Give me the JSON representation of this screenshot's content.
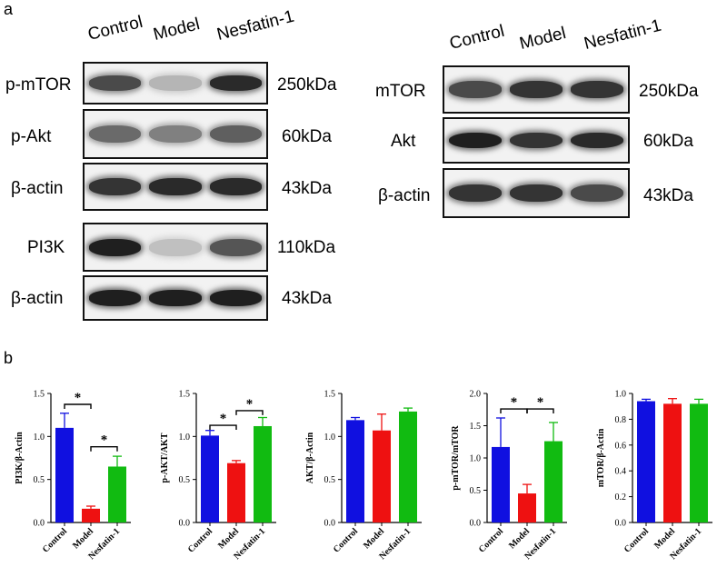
{
  "panel_a_label": "a",
  "panel_b_label": "b",
  "lanes": [
    "Control",
    "Model",
    "Nesfatin-1"
  ],
  "left_blot": {
    "rows": [
      {
        "label": "p-mTOR",
        "kda": "250kDa",
        "intensity": [
          0.75,
          0.25,
          0.9
        ]
      },
      {
        "label": "p-Akt",
        "kda": "60kDa",
        "intensity": [
          0.6,
          0.5,
          0.65
        ]
      },
      {
        "label": "β-actin",
        "kda": "43kDa",
        "intensity": [
          0.85,
          0.9,
          0.9
        ]
      },
      {
        "label": "PI3K",
        "kda": "110kDa",
        "intensity": [
          0.95,
          0.2,
          0.7
        ]
      },
      {
        "label": "β-actin",
        "kda": "43kDa",
        "intensity": [
          0.95,
          0.95,
          0.95
        ]
      }
    ]
  },
  "right_blot": {
    "rows": [
      {
        "label": "mTOR",
        "kda": "250kDa",
        "intensity": [
          0.75,
          0.85,
          0.85
        ]
      },
      {
        "label": "Akt",
        "kda": "60kDa",
        "intensity": [
          0.95,
          0.85,
          0.9
        ]
      },
      {
        "label": "β-actin",
        "kda": "43kDa",
        "intensity": [
          0.85,
          0.85,
          0.75
        ]
      }
    ]
  },
  "colors": {
    "control": "#1010e0",
    "model": "#ee1111",
    "nesfatin": "#11bb11"
  },
  "chart_data": [
    {
      "type": "bar",
      "ylabel": "PI3K/β-Actin",
      "categories": [
        "Control",
        "Model",
        "Nesfatin-1"
      ],
      "values": [
        1.1,
        0.16,
        0.65
      ],
      "errors": [
        0.17,
        0.03,
        0.12
      ],
      "ylim": [
        0,
        1.5
      ],
      "yticks": [
        "0.0",
        "0.5",
        "1.0",
        "1.5"
      ],
      "ytick_values": [
        0,
        0.5,
        1.0,
        1.5
      ],
      "significance": [
        {
          "from": 0,
          "to": 1,
          "label": "*"
        },
        {
          "from": 1,
          "to": 2,
          "label": "*"
        }
      ]
    },
    {
      "type": "bar",
      "ylabel": "p-AKT/AKT",
      "categories": [
        "Control",
        "Model",
        "Nesfatin-1"
      ],
      "values": [
        1.01,
        0.69,
        1.12
      ],
      "errors": [
        0.06,
        0.03,
        0.1
      ],
      "ylim": [
        0,
        1.5
      ],
      "yticks": [
        "0.0",
        "0.5",
        "1.0",
        "1.5"
      ],
      "ytick_values": [
        0,
        0.5,
        1.0,
        1.5
      ],
      "significance": [
        {
          "from": 0,
          "to": 1,
          "label": "*"
        },
        {
          "from": 1,
          "to": 2,
          "label": "*"
        }
      ]
    },
    {
      "type": "bar",
      "ylabel": "AKT/β-Actin",
      "categories": [
        "Control",
        "Model",
        "Nesfatin-1"
      ],
      "values": [
        1.19,
        1.07,
        1.29
      ],
      "errors": [
        0.03,
        0.19,
        0.04
      ],
      "ylim": [
        0,
        1.5
      ],
      "yticks": [
        "0.0",
        "0.5",
        "1.0",
        "1.5"
      ],
      "ytick_values": [
        0,
        0.5,
        1.0,
        1.5
      ],
      "significance": []
    },
    {
      "type": "bar",
      "ylabel": "p-mTOR/mTOR",
      "categories": [
        "Control",
        "Model",
        "Nesfatin-1"
      ],
      "values": [
        1.17,
        0.45,
        1.26
      ],
      "errors": [
        0.45,
        0.14,
        0.29
      ],
      "ylim": [
        0,
        2.0
      ],
      "yticks": [
        "0.0",
        "0.5",
        "1.0",
        "1.5",
        "2.0"
      ],
      "ytick_values": [
        0,
        0.5,
        1.0,
        1.5,
        2.0
      ],
      "significance": [
        {
          "from": 0,
          "to": 1,
          "label": "*"
        },
        {
          "from": 1,
          "to": 2,
          "label": "*"
        }
      ]
    },
    {
      "type": "bar",
      "ylabel": "mTOR/β-Actin",
      "categories": [
        "Control",
        "Model",
        "Nesfatin-1"
      ],
      "values": [
        0.94,
        0.92,
        0.92
      ],
      "errors": [
        0.015,
        0.04,
        0.035
      ],
      "ylim": [
        0,
        1.0
      ],
      "yticks": [
        "0.0",
        "0.2",
        "0.4",
        "0.6",
        "0.8",
        "1.0"
      ],
      "ytick_values": [
        0,
        0.2,
        0.4,
        0.6,
        0.8,
        1.0
      ],
      "significance": []
    }
  ]
}
